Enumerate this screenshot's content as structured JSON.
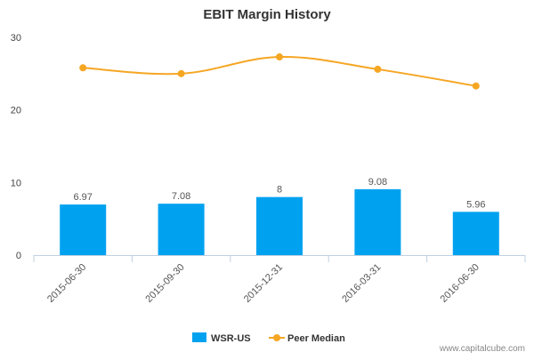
{
  "chart_data": {
    "type": "bar",
    "title": "EBIT Margin History",
    "categories": [
      "2015-06-30",
      "2015-09-30",
      "2015-12-31",
      "2016-03-31",
      "2016-06-30"
    ],
    "series": [
      {
        "name": "WSR-US",
        "type": "bar",
        "values": [
          6.97,
          7.08,
          8,
          9.08,
          5.96
        ],
        "labels": [
          "6.97",
          "7.08",
          "8",
          "9.08",
          "5.96"
        ],
        "color": "#00a2f0"
      },
      {
        "name": "Peer Median",
        "type": "line",
        "values": [
          25.8,
          25.0,
          27.3,
          25.6,
          23.3
        ],
        "color": "#f5a623"
      }
    ],
    "yticks": [
      "0",
      "10",
      "20",
      "30"
    ],
    "ylim": [
      0,
      30
    ],
    "xlabel": "",
    "ylabel": "",
    "legend_position": "bottom",
    "grid": false
  },
  "credit": "www.capitalcube.com"
}
